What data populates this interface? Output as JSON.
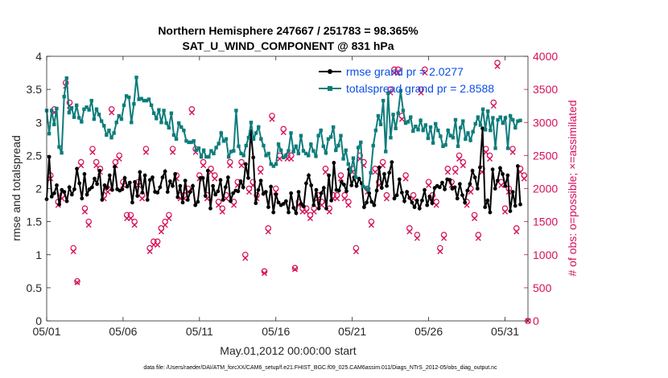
{
  "chart_data": {
    "type": "line",
    "title": "Northern Hemisphere 247667 / 251783 = 98.365%",
    "subtitle": "SAT_U_WIND_COMPONENT @ 831 hPa",
    "xlabel": "May.01,2012 00:00:00 start",
    "ylabel": "rmse and totalspread",
    "y2label": "# of obs: o=possible; ×=assimilated",
    "footnote": "data file: /Users/raeder/DAI/ATM_forcXX/CAM6_setup/f.e21.FHIST_BGC.f09_025.CAM6assim.011/Diags_NTrS_2012-05/obs_diag_output.nc",
    "xlim": [
      0,
      31.5
    ],
    "ylim": [
      0,
      4
    ],
    "y2lim": [
      0,
      4000
    ],
    "x_ticks": [
      0,
      5,
      10,
      15,
      20,
      25,
      30
    ],
    "x_tick_labels": [
      "05/01",
      "05/06",
      "05/11",
      "05/16",
      "05/21",
      "05/26",
      "05/31"
    ],
    "y_ticks": [
      0,
      0.5,
      1,
      1.5,
      2,
      2.5,
      3,
      3.5,
      4
    ],
    "y_tick_labels": [
      "0",
      "0.5",
      "1",
      "1.5",
      "2",
      "2.5",
      "3",
      "3.5",
      "4"
    ],
    "y2_ticks": [
      0,
      500,
      1000,
      1500,
      2000,
      2500,
      3000,
      3500,
      4000
    ],
    "y2_tick_labels": [
      "0",
      "500",
      "1000",
      "1500",
      "2000",
      "2500",
      "3000",
      "3500",
      "4000"
    ],
    "legend_position": "top-right",
    "series": [
      {
        "name": "rmse grand pr = 2.0277",
        "color": "#000000",
        "marker": "circle",
        "values": [
          1.84,
          2.48,
          1.88,
          1.93,
          2.05,
          1.76,
          1.98,
          1.95,
          1.81,
          2.02,
          1.91,
          1.99,
          2.3,
          2.08,
          1.85,
          2.22,
          1.91,
          1.99,
          2.02,
          2.15,
          2.07,
          2.27,
          1.83,
          2.05,
          2.01,
          2.2,
          1.98,
          2.33,
          1.99,
          1.97,
          1.99,
          2.16,
          2.03,
          2.09,
          1.79,
          2.1,
          1.89,
          2.25,
          1.94,
          2.2,
          1.83,
          2.13,
          2.17,
          1.95,
          1.94,
          2.02,
          2.17,
          2.26,
          1.95,
          2.11,
          2.04,
          2.22,
          1.87,
          2.04,
          1.79,
          2.12,
          1.83,
          1.95,
          2.04,
          1.75,
          1.8,
          2.16,
          2.16,
          1.89,
          2.27,
          1.7,
          2.04,
          1.91,
          1.96,
          2.13,
          1.83,
          2.02,
          2.17,
          1.81,
          1.93,
          1.97,
          1.96,
          2.11,
          2.02,
          2.37,
          2.16,
          2.87,
          2.47,
          1.78,
          1.98,
          2.12,
          1.92,
          1.95,
          1.72,
          2.03,
          1.64,
          1.91,
          1.79,
          1.75,
          1.77,
          1.81,
          1.64,
          1.93,
          1.71,
          1.63,
          1.95,
          1.77,
          1.73,
          2.08,
          2.2,
          2.05,
          1.75,
          1.98,
          1.7,
          1.93,
          2.01,
          1.7,
          2.2,
          1.82,
          2.39,
          1.98,
          1.97,
          2.1,
          2.06,
          1.96,
          2.29,
          2.05,
          2.17,
          2.04,
          2.15,
          2.08,
          1.72,
          1.79,
          1.93,
          1.8,
          1.75,
          1.97,
          2.32,
          2.01,
          2.22,
          2.04,
          2.24,
          2.4,
          1.85,
          1.9,
          2.14,
          1.94,
          1.81,
          1.95,
          1.86,
          1.79,
          1.72,
          1.82,
          1.7,
          1.82,
          1.98,
          1.75,
          1.88,
          1.78,
          2.01,
          2.04,
          2.02,
          2.09,
          1.99,
          2.14,
          2.13,
          2.0,
          2.02,
          1.85,
          2.07,
          1.9,
          1.79,
          1.97,
          2.07,
          2.27,
          2.17,
          2.0,
          2.32,
          2.91,
          1.72,
          1.82,
          1.64,
          2.29,
          2.0,
          2.12,
          2.31,
          2.22,
          2.04,
          2.2,
          1.66,
          1.95,
          1.74,
          2.34,
          1.76
        ]
      },
      {
        "name": "totalspread grand pr = 2.8588",
        "color": "#0e7c7b",
        "marker": "square",
        "values": [
          3.18,
          2.83,
          3.18,
          2.97,
          3.21,
          2.63,
          2.54,
          3.39,
          3.67,
          3.15,
          3.22,
          3.08,
          3.26,
          3.07,
          3.01,
          3.2,
          3.23,
          3.19,
          3.33,
          3.05,
          3.2,
          3.12,
          3.02,
          2.95,
          2.81,
          2.88,
          2.77,
          2.84,
          3.0,
          3.1,
          3.05,
          3.26,
          3.4,
          3.38,
          3.0,
          3.28,
          3.68,
          3.35,
          3.36,
          3.33,
          3.33,
          3.35,
          3.26,
          3.14,
          3.06,
          3.19,
          3.0,
          3.18,
          2.99,
          2.92,
          3.14,
          2.81,
          2.75,
          2.99,
          2.93,
          2.88,
          2.72,
          2.7,
          2.7,
          2.72,
          2.58,
          2.61,
          2.48,
          2.58,
          2.48,
          2.48,
          2.57,
          2.53,
          2.62,
          2.68,
          2.84,
          2.72,
          2.75,
          2.48,
          2.56,
          2.57,
          3.18,
          2.64,
          2.53,
          2.5,
          2.65,
          2.77,
          3.0,
          2.75,
          2.84,
          2.93,
          2.75,
          2.65,
          2.5,
          2.53,
          2.37,
          2.34,
          2.37,
          2.67,
          2.58,
          2.47,
          2.5,
          2.57,
          2.84,
          2.56,
          2.64,
          2.53,
          2.8,
          2.57,
          2.53,
          2.5,
          2.67,
          2.57,
          2.49,
          2.8,
          2.88,
          2.64,
          2.54,
          2.75,
          2.78,
          2.93,
          2.58,
          2.65,
          2.8,
          2.45,
          2.58,
          2.37,
          2.26,
          2.46,
          2.17,
          2.62,
          2.7,
          2.03,
          2.01,
          1.98,
          2.24,
          2.65,
          2.88,
          3.1,
          2.97,
          3.33,
          2.56,
          3.44,
          2.77,
          3.12,
          2.91,
          3.14,
          3.48,
          3.18,
          2.99,
          3.01,
          3.08,
          2.87,
          2.94,
          2.89,
          3.03,
          2.88,
          2.96,
          2.76,
          2.93,
          2.69,
          2.98,
          2.88,
          2.79,
          2.64,
          2.66,
          2.88,
          2.8,
          2.77,
          3.04,
          2.64,
          2.92,
          3.02,
          2.75,
          2.84,
          2.73,
          2.86,
          2.98,
          3.08,
          2.96,
          3.2,
          2.89,
          3.17,
          2.88,
          3.07,
          2.61,
          3.04,
          3.08,
          2.99,
          3.07,
          2.61,
          3.1,
          3.04,
          2.92,
          3.02,
          3.03
        ]
      }
    ],
    "obs_possible_pts": [
      [
        0.25,
        2200
      ],
      [
        0.5,
        3200
      ],
      [
        0.75,
        1800
      ],
      [
        1.0,
        1900
      ],
      [
        1.25,
        3600
      ],
      [
        1.5,
        3300
      ],
      [
        1.75,
        1100
      ],
      [
        2.0,
        600
      ],
      [
        2.25,
        2400
      ],
      [
        2.5,
        1700
      ],
      [
        2.75,
        1500
      ],
      [
        3.0,
        2600
      ],
      [
        3.25,
        2400
      ],
      [
        3.5,
        2300
      ],
      [
        3.75,
        1900
      ],
      [
        4.0,
        2000
      ],
      [
        4.25,
        3200
      ],
      [
        4.5,
        2400
      ],
      [
        4.75,
        2500
      ],
      [
        5.0,
        2100
      ],
      [
        5.25,
        1600
      ],
      [
        5.5,
        1600
      ],
      [
        5.75,
        1500
      ],
      [
        6.0,
        2100
      ],
      [
        6.25,
        1900
      ],
      [
        6.5,
        2600
      ],
      [
        6.75,
        1100
      ],
      [
        7.0,
        1200
      ],
      [
        7.25,
        1200
      ],
      [
        7.5,
        1400
      ],
      [
        7.75,
        1500
      ],
      [
        8.0,
        1600
      ],
      [
        8.25,
        2600
      ],
      [
        8.5,
        2200
      ],
      [
        8.75,
        1900
      ],
      [
        9.0,
        1900
      ],
      [
        9.25,
        2000
      ],
      [
        9.5,
        3200
      ],
      [
        9.75,
        2600
      ],
      [
        10.0,
        2200
      ],
      [
        10.25,
        2400
      ],
      [
        10.5,
        1900
      ],
      [
        10.75,
        2300
      ],
      [
        11.0,
        2200
      ],
      [
        11.25,
        1800
      ],
      [
        11.5,
        1700
      ],
      [
        11.75,
        1900
      ],
      [
        12.0,
        2400
      ],
      [
        12.25,
        1800
      ],
      [
        12.5,
        2100
      ],
      [
        12.75,
        2400
      ],
      [
        13.0,
        1000
      ],
      [
        13.25,
        2000
      ],
      [
        13.5,
        2100
      ],
      [
        13.75,
        1900
      ],
      [
        14.0,
        2300
      ],
      [
        14.25,
        750
      ],
      [
        14.5,
        1400
      ],
      [
        14.75,
        3100
      ],
      [
        15.0,
        2000
      ],
      [
        15.25,
        2500
      ],
      [
        15.5,
        2900
      ],
      [
        15.75,
        2500
      ],
      [
        16.0,
        2500
      ],
      [
        16.25,
        800
      ],
      [
        16.5,
        1800
      ],
      [
        16.75,
        1700
      ],
      [
        17.0,
        1700
      ],
      [
        17.25,
        1600
      ],
      [
        17.5,
        1700
      ],
      [
        17.75,
        1900
      ],
      [
        18.0,
        1800
      ],
      [
        18.25,
        2300
      ],
      [
        18.5,
        1700
      ],
      [
        18.75,
        1900
      ],
      [
        19.0,
        1900
      ],
      [
        19.25,
        2200
      ],
      [
        19.5,
        1900
      ],
      [
        19.75,
        1800
      ],
      [
        20.0,
        2300
      ],
      [
        20.25,
        1100
      ],
      [
        20.5,
        2500
      ],
      [
        20.75,
        2400
      ],
      [
        21.0,
        2000
      ],
      [
        21.25,
        1500
      ],
      [
        21.5,
        2300
      ],
      [
        21.75,
        2100
      ],
      [
        22.0,
        2400
      ],
      [
        22.25,
        1900
      ],
      [
        22.5,
        3500
      ],
      [
        22.75,
        3800
      ],
      [
        23.0,
        3800
      ],
      [
        23.25,
        3100
      ],
      [
        23.5,
        2200
      ],
      [
        23.75,
        1400
      ],
      [
        24.0,
        1900
      ],
      [
        24.25,
        1300
      ],
      [
        24.5,
        3500
      ],
      [
        24.75,
        3800
      ],
      [
        25.0,
        2100
      ],
      [
        25.25,
        1900
      ],
      [
        25.5,
        1800
      ],
      [
        25.75,
        1100
      ],
      [
        26.0,
        1300
      ],
      [
        26.25,
        2300
      ],
      [
        26.5,
        2100
      ],
      [
        26.75,
        2300
      ],
      [
        27.0,
        2500
      ],
      [
        27.25,
        2400
      ],
      [
        27.5,
        1800
      ],
      [
        27.75,
        2000
      ],
      [
        28.0,
        1600
      ],
      [
        28.25,
        1300
      ],
      [
        28.5,
        2300
      ],
      [
        28.75,
        2600
      ],
      [
        29.0,
        2500
      ],
      [
        29.25,
        3300
      ],
      [
        29.5,
        3900
      ],
      [
        29.75,
        2100
      ],
      [
        30.0,
        1700
      ],
      [
        30.25,
        2000
      ],
      [
        30.5,
        2600
      ],
      [
        30.75,
        1400
      ],
      [
        31.0,
        2300
      ],
      [
        31.25,
        2200
      ],
      [
        31.5,
        0
      ]
    ],
    "obs_assimilated_pts": [
      [
        0.25,
        2150
      ],
      [
        0.5,
        3150
      ],
      [
        0.75,
        1750
      ],
      [
        1.0,
        1850
      ],
      [
        1.25,
        3550
      ],
      [
        1.5,
        3250
      ],
      [
        1.75,
        1050
      ],
      [
        2.0,
        580
      ],
      [
        2.25,
        2350
      ],
      [
        2.5,
        1650
      ],
      [
        2.75,
        1450
      ],
      [
        3.0,
        2550
      ],
      [
        3.25,
        2350
      ],
      [
        3.5,
        2250
      ],
      [
        3.75,
        1850
      ],
      [
        4.0,
        1950
      ],
      [
        4.25,
        3150
      ],
      [
        4.5,
        2350
      ],
      [
        4.75,
        2450
      ],
      [
        5.0,
        2050
      ],
      [
        5.25,
        1550
      ],
      [
        5.5,
        1550
      ],
      [
        5.75,
        1450
      ],
      [
        6.0,
        2050
      ],
      [
        6.25,
        1850
      ],
      [
        6.5,
        2550
      ],
      [
        6.75,
        1050
      ],
      [
        7.0,
        1150
      ],
      [
        7.25,
        1150
      ],
      [
        7.5,
        1350
      ],
      [
        7.75,
        1450
      ],
      [
        8.0,
        1550
      ],
      [
        8.25,
        2550
      ],
      [
        8.5,
        2150
      ],
      [
        8.75,
        1850
      ],
      [
        9.0,
        1850
      ],
      [
        9.25,
        1950
      ],
      [
        9.5,
        3150
      ],
      [
        9.75,
        2550
      ],
      [
        10.0,
        2150
      ],
      [
        10.25,
        2350
      ],
      [
        10.5,
        1850
      ],
      [
        10.75,
        2250
      ],
      [
        11.0,
        2150
      ],
      [
        11.25,
        1750
      ],
      [
        11.5,
        1650
      ],
      [
        11.75,
        1850
      ],
      [
        12.0,
        2350
      ],
      [
        12.25,
        1750
      ],
      [
        12.5,
        2050
      ],
      [
        12.75,
        2350
      ],
      [
        13.0,
        950
      ],
      [
        13.25,
        1950
      ],
      [
        13.5,
        2050
      ],
      [
        13.75,
        1850
      ],
      [
        14.0,
        2250
      ],
      [
        14.25,
        720
      ],
      [
        14.5,
        1350
      ],
      [
        14.75,
        3050
      ],
      [
        15.0,
        1950
      ],
      [
        15.25,
        2450
      ],
      [
        15.5,
        2850
      ],
      [
        15.75,
        2450
      ],
      [
        16.0,
        2450
      ],
      [
        16.25,
        780
      ],
      [
        16.5,
        1750
      ],
      [
        16.75,
        1650
      ],
      [
        17.0,
        1650
      ],
      [
        17.25,
        1550
      ],
      [
        17.5,
        1650
      ],
      [
        17.75,
        1850
      ],
      [
        18.0,
        1750
      ],
      [
        18.25,
        2250
      ],
      [
        18.5,
        1650
      ],
      [
        18.75,
        1850
      ],
      [
        19.0,
        1850
      ],
      [
        19.25,
        2150
      ],
      [
        19.5,
        1850
      ],
      [
        19.75,
        1750
      ],
      [
        20.0,
        2250
      ],
      [
        20.25,
        1050
      ],
      [
        20.5,
        2450
      ],
      [
        20.75,
        2350
      ],
      [
        21.0,
        1950
      ],
      [
        21.25,
        1450
      ],
      [
        21.5,
        2250
      ],
      [
        21.75,
        2050
      ],
      [
        22.0,
        2350
      ],
      [
        22.25,
        1850
      ],
      [
        22.5,
        3450
      ],
      [
        22.75,
        3750
      ],
      [
        23.0,
        3750
      ],
      [
        23.25,
        3050
      ],
      [
        23.5,
        2150
      ],
      [
        23.75,
        1350
      ],
      [
        24.0,
        1850
      ],
      [
        24.25,
        1250
      ],
      [
        24.5,
        3450
      ],
      [
        24.75,
        3750
      ],
      [
        25.0,
        2050
      ],
      [
        25.25,
        1850
      ],
      [
        25.5,
        1750
      ],
      [
        25.75,
        1050
      ],
      [
        26.0,
        1250
      ],
      [
        26.25,
        2250
      ],
      [
        26.5,
        2050
      ],
      [
        26.75,
        2250
      ],
      [
        27.0,
        2450
      ],
      [
        27.25,
        2350
      ],
      [
        27.5,
        1750
      ],
      [
        27.75,
        1950
      ],
      [
        28.0,
        1550
      ],
      [
        28.25,
        1250
      ],
      [
        28.5,
        2250
      ],
      [
        28.75,
        2550
      ],
      [
        29.0,
        2450
      ],
      [
        29.25,
        3250
      ],
      [
        29.5,
        3850
      ],
      [
        29.75,
        2050
      ],
      [
        30.0,
        1650
      ],
      [
        30.25,
        1950
      ],
      [
        30.5,
        2550
      ],
      [
        30.75,
        1350
      ],
      [
        31.0,
        2250
      ],
      [
        31.25,
        2150
      ],
      [
        31.5,
        0
      ]
    ],
    "obs_color": "#d6105a"
  }
}
